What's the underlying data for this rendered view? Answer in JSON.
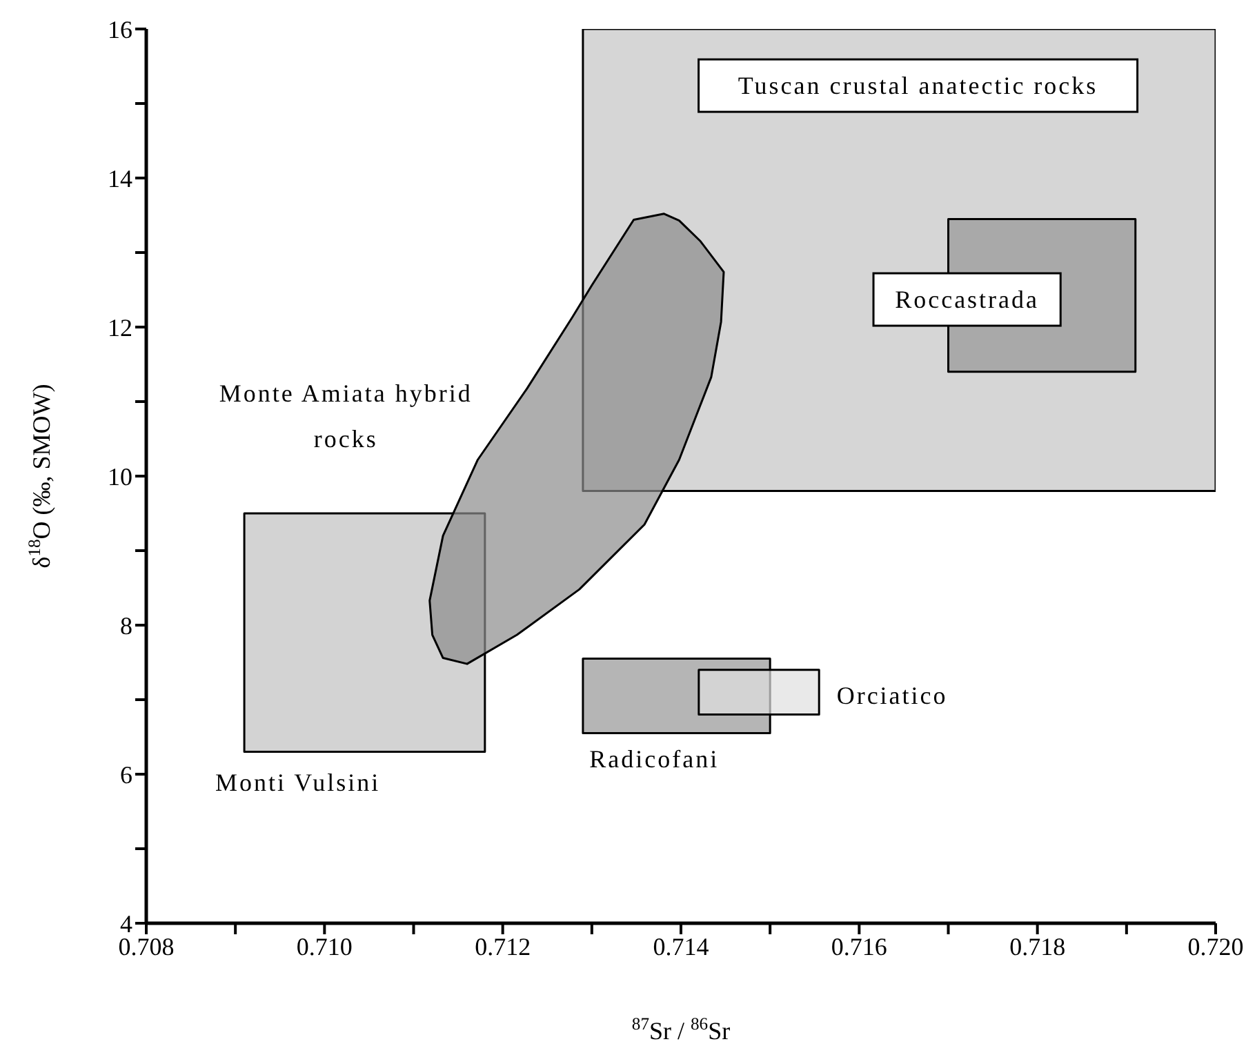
{
  "chart_data": {
    "type": "area",
    "xlabel": "$^{87}$Sr / $^{86}$Sr",
    "ylabel": "δ$^{18}$O (‰, SMOW)",
    "xlim": [
      0.708,
      0.72
    ],
    "xticks": [
      0.708,
      {
        "value": 0.709,
        "label": null
      },
      {
        "value": 0.71,
        "label": "0.710"
      },
      {
        "value": 0.711,
        "label": null
      },
      0.712,
      {
        "value": 0.713,
        "label": null
      },
      0.714,
      {
        "value": 0.715,
        "label": null
      },
      0.716,
      {
        "value": 0.717,
        "label": null
      },
      0.718,
      {
        "value": 0.719,
        "label": null
      },
      {
        "value": 0.72,
        "label": "0.720"
      }
    ],
    "ylim": [
      4,
      16
    ],
    "yticks": [
      4,
      {
        "value": 5,
        "label": null
      },
      6,
      {
        "value": 7,
        "label": null
      },
      8,
      {
        "value": 9,
        "label": null
      },
      10,
      {
        "value": 11,
        "label": null
      },
      12,
      {
        "value": 13,
        "label": null
      },
      14,
      {
        "value": 15,
        "label": null
      },
      16
    ],
    "marker": "none",
    "series": [
      {
        "color": "#c4c4c4",
        "x": [
          0.7129,
          0.72,
          0.72,
          0.7129
        ],
        "values": [
          16,
          16,
          9.8,
          9.8
        ]
      },
      {
        "color": "#969696",
        "x": [
          0.717,
          0.7191,
          0.7191,
          0.717
        ],
        "values": [
          13.45,
          13.45,
          11.4,
          11.4
        ]
      },
      {
        "color": "#c0c0c0",
        "x": [
          0.7091,
          0.7118,
          0.7118,
          0.7091
        ],
        "values": [
          9.5,
          9.5,
          6.3,
          6.3
        ]
      },
      {
        "color": "#8c8c8c",
        "x": [
          0.71347,
          0.71381,
          0.71398,
          0.71422,
          0.71448,
          0.71445,
          0.71434,
          0.71398,
          0.71359,
          0.71286,
          0.71216,
          0.7116,
          0.71133,
          0.71121,
          0.71118,
          0.71133,
          0.71172,
          0.71227,
          0.71278,
          0.713
        ],
        "values": [
          13.44,
          13.52,
          13.43,
          13.15,
          12.74,
          12.07,
          11.33,
          10.22,
          9.35,
          8.48,
          7.87,
          7.48,
          7.56,
          7.87,
          8.33,
          9.2,
          10.22,
          11.17,
          12.13,
          12.56
        ]
      },
      {
        "color": "#969696",
        "x": [
          0.7129,
          0.715,
          0.715,
          0.7129
        ],
        "values": [
          7.55,
          7.55,
          6.55,
          6.55
        ]
      },
      {
        "color": "#e0e0e0",
        "x": [
          0.7142,
          0.71555,
          0.71555,
          0.7142
        ],
        "values": [
          7.4,
          7.4,
          6.8,
          6.8
        ]
      }
    ],
    "annotations": [
      "Tuscan crustal anatectic rocks",
      "Roccastrada",
      "Monte Amiata hybrid rocks",
      "Monti Vulsini",
      "Radicofani",
      "Orciatico"
    ]
  }
}
